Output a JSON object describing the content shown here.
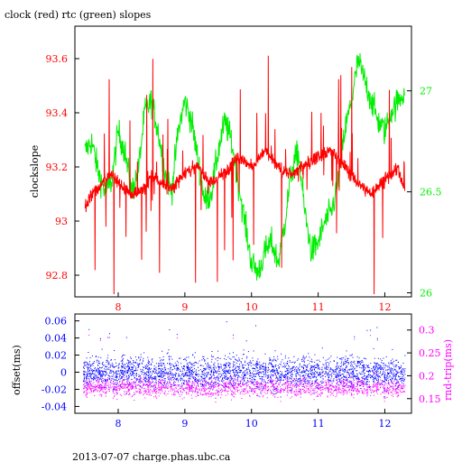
{
  "title": "clock (red) rtc (green) slopes",
  "footer": "2013-07-07 charge.phas.ubc.ca",
  "colors": {
    "red": "#ff0000",
    "green": "#00ee00",
    "blue": "#0000ff",
    "magenta": "#ff00ff",
    "black": "#000000",
    "white": "#ffffff"
  },
  "chart_data": [
    {
      "type": "line",
      "title": "clock (red) rtc (green) slopes",
      "ylabel": "clockslope",
      "xlim": [
        7.35,
        12.4
      ],
      "ylim": [
        92.72,
        93.72
      ],
      "y2lim": [
        25.98,
        27.32
      ],
      "x_ticks": [
        8,
        9,
        10,
        11,
        12
      ],
      "y_ticks": [
        92.8,
        93,
        93.2,
        93.4,
        93.6
      ],
      "y_tick_labels": [
        "92.8",
        "93",
        "93.2",
        "93.4",
        "93.6"
      ],
      "y2_ticks": [
        26,
        26.5,
        27
      ],
      "y2_tick_labels": [
        "26",
        "26.5",
        "27"
      ],
      "series": [
        {
          "name": "clock",
          "color": "#ff0000",
          "axis": "left",
          "x": [
            7.5,
            7.6,
            7.7,
            7.8,
            7.9,
            8.0,
            8.2,
            8.4,
            8.5,
            8.6,
            8.8,
            9.0,
            9.2,
            9.4,
            9.6,
            9.8,
            10.0,
            10.2,
            10.4,
            10.6,
            10.8,
            11.0,
            11.2,
            11.4,
            11.6,
            11.8,
            12.0,
            12.2,
            12.3
          ],
          "values": [
            93.05,
            93.1,
            93.12,
            93.15,
            93.18,
            93.14,
            93.1,
            93.12,
            93.17,
            93.15,
            93.12,
            93.18,
            93.2,
            93.14,
            93.18,
            93.24,
            93.2,
            93.26,
            93.2,
            93.17,
            93.21,
            93.24,
            93.26,
            93.2,
            93.14,
            93.1,
            93.16,
            93.19,
            93.12
          ]
        },
        {
          "name": "rtc",
          "color": "#00ee00",
          "axis": "right",
          "x": [
            7.5,
            7.6,
            7.7,
            7.8,
            7.9,
            8.0,
            8.1,
            8.2,
            8.3,
            8.4,
            8.5,
            8.6,
            8.7,
            8.8,
            8.9,
            9.0,
            9.1,
            9.2,
            9.3,
            9.4,
            9.5,
            9.6,
            9.7,
            9.8,
            9.9,
            10.0,
            10.1,
            10.2,
            10.3,
            10.4,
            10.5,
            10.6,
            10.7,
            10.8,
            10.9,
            11.0,
            11.1,
            11.2,
            11.3,
            11.4,
            11.5,
            11.6,
            11.7,
            11.8,
            11.9,
            12.0,
            12.1,
            12.2,
            12.3
          ],
          "values": [
            26.7,
            26.75,
            26.6,
            26.5,
            26.55,
            26.8,
            26.7,
            26.5,
            26.6,
            26.9,
            26.95,
            26.8,
            26.6,
            26.5,
            26.8,
            26.95,
            26.85,
            26.65,
            26.45,
            26.5,
            26.7,
            26.85,
            26.75,
            26.55,
            26.35,
            26.15,
            26.1,
            26.2,
            26.25,
            26.15,
            26.35,
            26.6,
            26.7,
            26.4,
            26.2,
            26.25,
            26.35,
            26.4,
            26.55,
            26.8,
            26.95,
            27.15,
            27.05,
            26.95,
            26.85,
            26.8,
            26.9,
            26.95,
            27.0
          ]
        }
      ]
    },
    {
      "type": "scatter",
      "ylabel": "offset(ms)",
      "y2label": "rnd-trip(ms)",
      "xlim": [
        7.35,
        12.4
      ],
      "ylim": [
        -0.048,
        0.068
      ],
      "y2lim": [
        0.118,
        0.335
      ],
      "x_ticks": [
        8,
        9,
        10,
        11,
        12
      ],
      "y_ticks": [
        -0.04,
        -0.02,
        0,
        0.02,
        0.04,
        0.06
      ],
      "y_tick_labels": [
        "-0.04",
        "-0.02",
        "0",
        "0.02",
        "0.04",
        "0.06"
      ],
      "y2_ticks": [
        0.15,
        0.2,
        0.25,
        0.3
      ],
      "y2_tick_labels": [
        "0.15",
        "0.2",
        "0.25",
        "0.3"
      ],
      "series": [
        {
          "name": "offset",
          "color": "#0000ff",
          "axis": "left",
          "center": 0.0,
          "spread": 0.017,
          "outliers": 0.06
        },
        {
          "name": "rnd-trip",
          "color": "#ff00ff",
          "axis": "right",
          "center": 0.175,
          "spread": 0.018,
          "outliers": 0.3
        }
      ]
    }
  ]
}
